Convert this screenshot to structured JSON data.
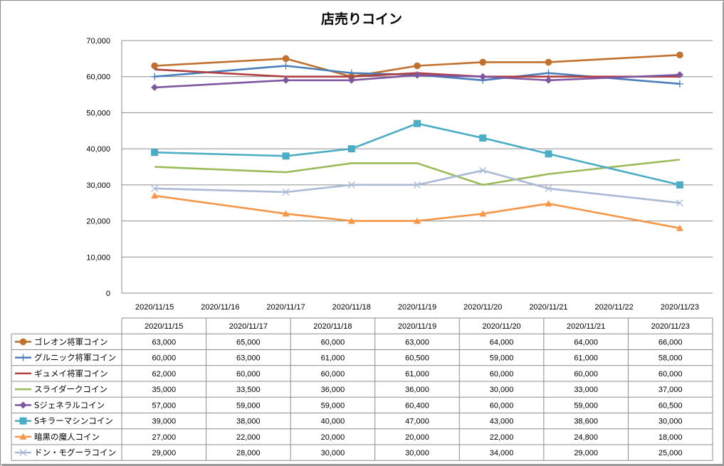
{
  "chart_data": {
    "type": "line",
    "title": "店売りコイン",
    "x": [
      "2020/11/15",
      "2020/11/16",
      "2020/11/17",
      "2020/11/18",
      "2020/11/19",
      "2020/11/20",
      "2020/11/21",
      "2020/11/22",
      "2020/11/23"
    ],
    "ylim": [
      0,
      70000
    ],
    "yticks": [
      "0",
      "10,000",
      "20,000",
      "30,000",
      "40,000",
      "50,000",
      "60,000",
      "70,000"
    ],
    "grid": true,
    "legend": "data-table-below",
    "table_columns": [
      "2020/11/15",
      "2020/11/17",
      "2020/11/18",
      "2020/11/19",
      "2020/11/20",
      "2020/11/21",
      "2020/11/23"
    ],
    "series": [
      {
        "name": "ゴレオン将軍コイン",
        "color": "#C0712D",
        "marker": "circle",
        "x": [
          "2020/11/15",
          "2020/11/17",
          "2020/11/18",
          "2020/11/19",
          "2020/11/20",
          "2020/11/21",
          "2020/11/23"
        ],
        "values": [
          63000,
          65000,
          60000,
          63000,
          64000,
          64000,
          66000
        ],
        "labels": [
          "63,000",
          "65,000",
          "60,000",
          "63,000",
          "64,000",
          "64,000",
          "66,000"
        ]
      },
      {
        "name": "グルニック将軍コイン",
        "color": "#4A7EBB",
        "marker": "plus",
        "x": [
          "2020/11/15",
          "2020/11/17",
          "2020/11/18",
          "2020/11/19",
          "2020/11/20",
          "2020/11/21",
          "2020/11/23"
        ],
        "values": [
          60000,
          63000,
          61000,
          60500,
          59000,
          61000,
          58000
        ],
        "labels": [
          "60,000",
          "63,000",
          "61,000",
          "60,500",
          "59,000",
          "61,000",
          "58,000"
        ]
      },
      {
        "name": "ギュメイ将軍コイン",
        "color": "#B04040",
        "marker": "none",
        "x": [
          "2020/11/15",
          "2020/11/17",
          "2020/11/18",
          "2020/11/19",
          "2020/11/20",
          "2020/11/21",
          "2020/11/23"
        ],
        "values": [
          62000,
          60000,
          60000,
          61000,
          60000,
          60000,
          60000
        ],
        "labels": [
          "62,000",
          "60,000",
          "60,000",
          "61,000",
          "60,000",
          "60,000",
          "60,000"
        ]
      },
      {
        "name": "スライダークコイン",
        "color": "#9BBB59",
        "marker": "none",
        "x": [
          "2020/11/15",
          "2020/11/17",
          "2020/11/18",
          "2020/11/19",
          "2020/11/20",
          "2020/11/21",
          "2020/11/23"
        ],
        "values": [
          35000,
          33500,
          36000,
          36000,
          30000,
          33000,
          37000
        ],
        "labels": [
          "35,000",
          "33,500",
          "36,000",
          "36,000",
          "30,000",
          "33,000",
          "37,000"
        ]
      },
      {
        "name": "Sジェネラルコイン",
        "color": "#7E57A0",
        "marker": "diamond",
        "x": [
          "2020/11/15",
          "2020/11/17",
          "2020/11/18",
          "2020/11/19",
          "2020/11/20",
          "2020/11/21",
          "2020/11/23"
        ],
        "values": [
          57000,
          59000,
          59000,
          60400,
          60000,
          59000,
          60500
        ],
        "labels": [
          "57,000",
          "59,000",
          "59,000",
          "60,400",
          "60,000",
          "59,000",
          "60,500"
        ]
      },
      {
        "name": "Sキラーマシンコイン",
        "color": "#4BACC6",
        "marker": "square",
        "x": [
          "2020/11/15",
          "2020/11/17",
          "2020/11/18",
          "2020/11/19",
          "2020/11/20",
          "2020/11/21",
          "2020/11/23"
        ],
        "values": [
          39000,
          38000,
          40000,
          47000,
          43000,
          38600,
          30000
        ],
        "labels": [
          "39,000",
          "38,000",
          "40,000",
          "47,000",
          "43,000",
          "38,600",
          "30,000"
        ]
      },
      {
        "name": "暗黒の魔人コイン",
        "color": "#F79646",
        "marker": "triangle",
        "x": [
          "2020/11/15",
          "2020/11/17",
          "2020/11/18",
          "2020/11/19",
          "2020/11/20",
          "2020/11/21",
          "2020/11/23"
        ],
        "values": [
          27000,
          22000,
          20000,
          20000,
          22000,
          24800,
          18000
        ],
        "labels": [
          "27,000",
          "22,000",
          "20,000",
          "20,000",
          "22,000",
          "24,800",
          "18,000"
        ]
      },
      {
        "name": "ドン・モグーラコイン",
        "color": "#A9B9D6",
        "marker": "x",
        "x": [
          "2020/11/15",
          "2020/11/17",
          "2020/11/18",
          "2020/11/19",
          "2020/11/20",
          "2020/11/21",
          "2020/11/23"
        ],
        "values": [
          29000,
          28000,
          30000,
          30000,
          34000,
          29000,
          25000
        ],
        "labels": [
          "29,000",
          "28,000",
          "30,000",
          "30,000",
          "34,000",
          "29,000",
          "25,000"
        ]
      }
    ]
  }
}
